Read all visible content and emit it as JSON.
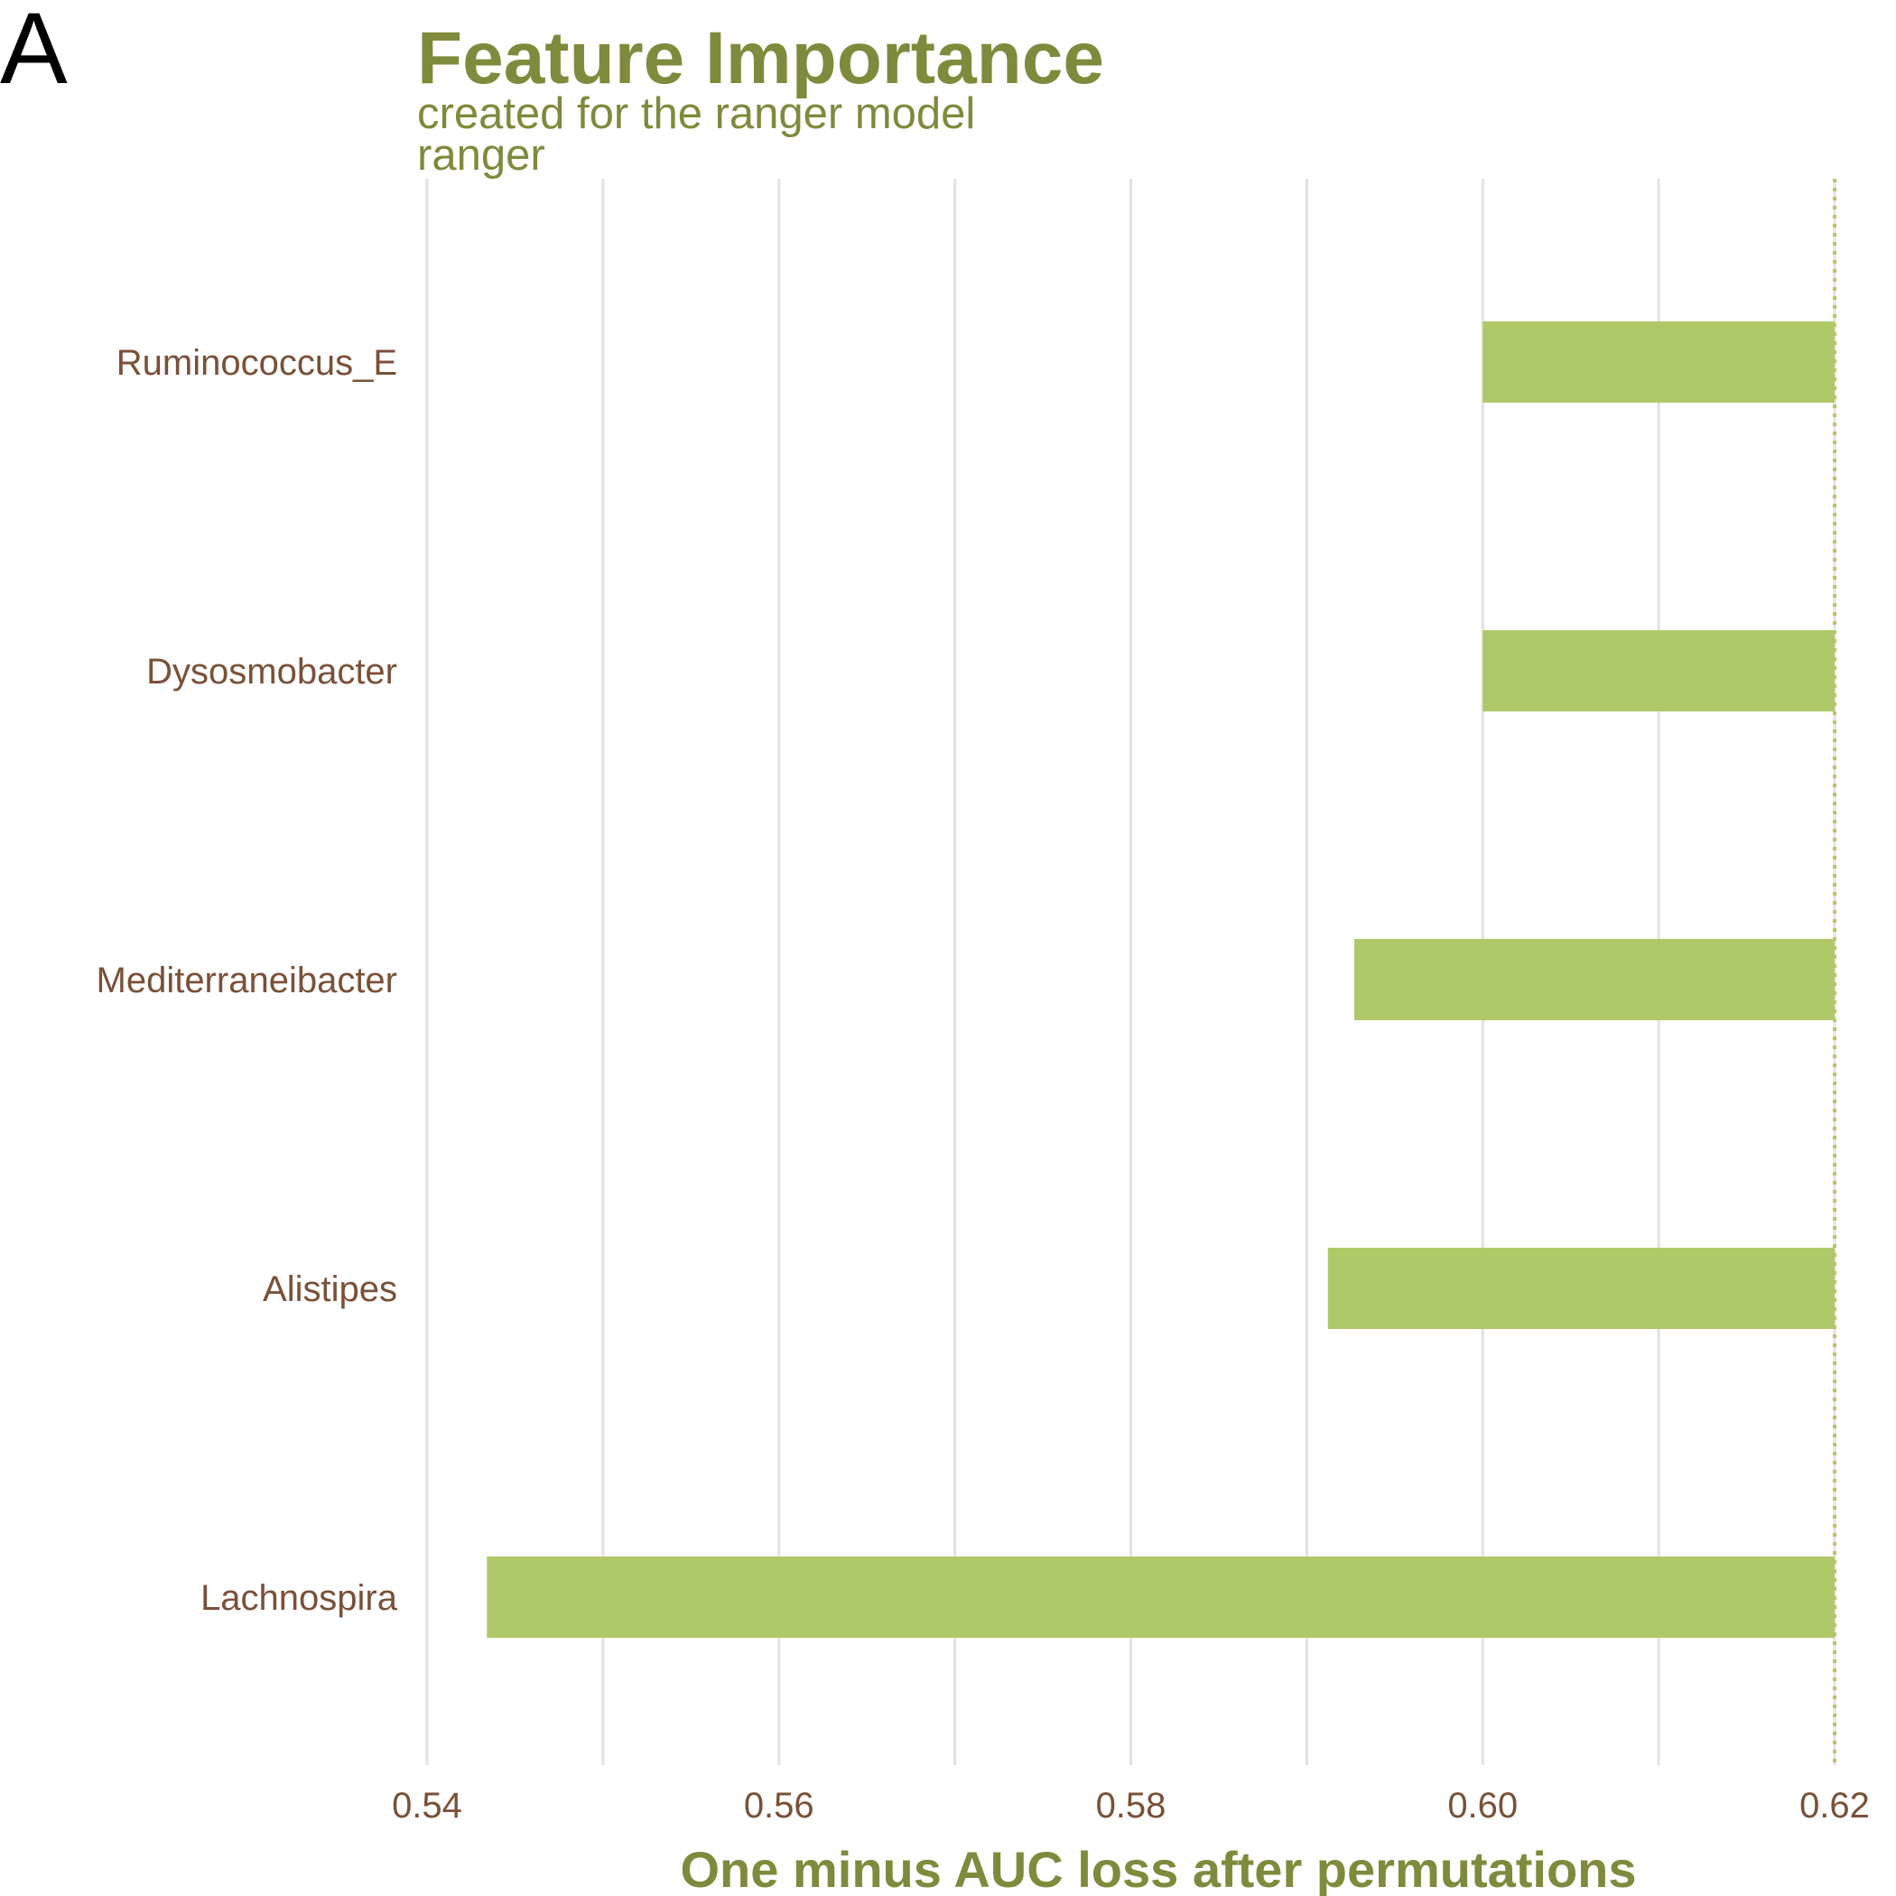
{
  "panel_label": "A",
  "colors": {
    "title": "#7f8a3c",
    "bar": "#b0c968",
    "label": "#7a5038",
    "grid": "#e2e2e2",
    "reference_line": "#b0c968"
  },
  "chart_data": {
    "type": "bar",
    "orientation": "horizontal",
    "title": "Feature Importance",
    "subtitle": "created for the ranger model",
    "panel_title": "ranger",
    "xlabel": "One minus AUC loss after permutations",
    "ylabel": "",
    "xlim": [
      0.54,
      0.62
    ],
    "x_ticks": [
      {
        "value": 0.54,
        "label": "0.54"
      },
      {
        "value": 0.56,
        "label": "0.56"
      },
      {
        "value": 0.58,
        "label": "0.58"
      },
      {
        "value": 0.6,
        "label": "0.60"
      },
      {
        "value": 0.62,
        "label": "0.62"
      }
    ],
    "x_minor_ticks": [
      0.55,
      0.57,
      0.59,
      0.61
    ],
    "baseline": 0.62,
    "categories": [
      "Ruminococcus_E",
      "Dysosmobacter",
      "Mediterraneibacter",
      "Alistipes",
      "Lachnospira"
    ],
    "values": [
      0.6,
      0.6,
      0.5927,
      0.5912,
      0.5434
    ],
    "grid": true,
    "legend": "none"
  }
}
